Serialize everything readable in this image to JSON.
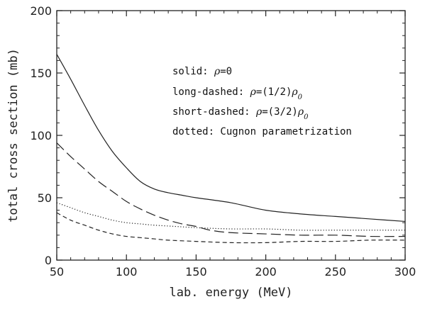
{
  "chart_data": {
    "type": "line",
    "xlabel": "lab. energy (MeV)",
    "ylabel": "total cross section (mb)",
    "xlim": [
      50,
      300
    ],
    "ylim": [
      0,
      200
    ],
    "xticks": [
      50,
      100,
      150,
      200,
      250,
      300
    ],
    "yticks": [
      0,
      50,
      100,
      150,
      200
    ],
    "grid": false,
    "legend_placement": "upper-right inside plot",
    "legend": [
      {
        "style": "solid",
        "text": "solid: ρ=0"
      },
      {
        "style": "long-dashed",
        "text": "long-dashed: ρ=(1/2)ρ0"
      },
      {
        "style": "short-dashed",
        "text": "short-dashed: ρ=(3/2)ρ0"
      },
      {
        "style": "dotted",
        "text": "dotted: Cugnon parametrization"
      }
    ],
    "series": [
      {
        "style": "solid",
        "x": [
          50,
          60,
          70,
          80,
          90,
          100,
          110,
          120,
          130,
          140,
          150,
          175,
          200,
          225,
          250,
          275,
          300
        ],
        "y": [
          165,
          145,
          124,
          104,
          87,
          74,
          63,
          57,
          54,
          52,
          50,
          46,
          40,
          37,
          35,
          33,
          31
        ]
      },
      {
        "style": "long-dashed",
        "x": [
          50,
          60,
          70,
          80,
          90,
          100,
          110,
          120,
          130,
          140,
          150,
          160,
          175,
          200,
          225,
          250,
          275,
          300
        ],
        "y": [
          94,
          83,
          73,
          63,
          55,
          47,
          41,
          36,
          32,
          29,
          27,
          24,
          22,
          21,
          20,
          20,
          19,
          19
        ]
      },
      {
        "style": "short-dashed",
        "x": [
          50,
          60,
          70,
          80,
          90,
          100,
          110,
          120,
          130,
          150,
          175,
          200,
          225,
          250,
          275,
          300
        ],
        "y": [
          38,
          32,
          28,
          24,
          21,
          19,
          18,
          17,
          16,
          15,
          14,
          14,
          15,
          15,
          16,
          16
        ]
      },
      {
        "style": "dotted",
        "x": [
          50,
          60,
          70,
          80,
          90,
          100,
          110,
          120,
          135,
          150,
          175,
          200,
          225,
          250,
          275,
          300
        ],
        "y": [
          46,
          42,
          38,
          35,
          32,
          30,
          29,
          28,
          27,
          26,
          25,
          25,
          24,
          24,
          24,
          24
        ]
      }
    ]
  }
}
